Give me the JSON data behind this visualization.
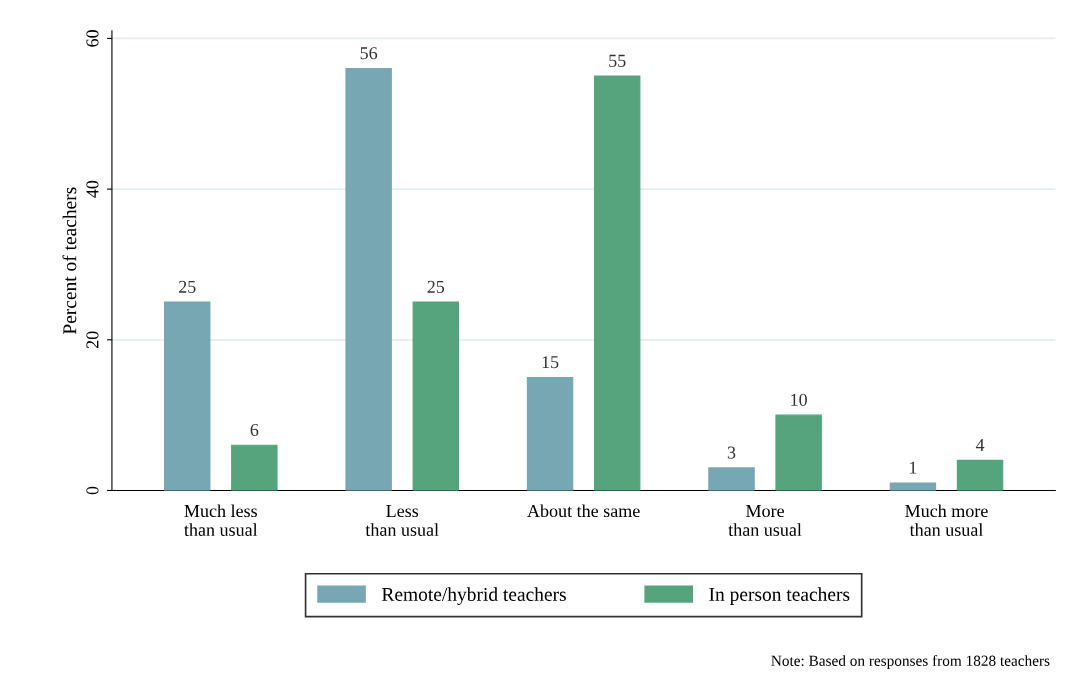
{
  "chart_data": {
    "type": "bar",
    "ylabel": "Percent of teachers",
    "categories": [
      "Much less\nthan usual",
      "Less\nthan usual",
      "About the same",
      "More\nthan usual",
      "Much more\nthan usual"
    ],
    "series": [
      {
        "name": "Remote/hybrid teachers",
        "color": "#76a7b2",
        "values": [
          25,
          56,
          15,
          3,
          1
        ]
      },
      {
        "name": "In person teachers",
        "color": "#55a47e",
        "values": [
          6,
          25,
          55,
          10,
          4
        ]
      }
    ],
    "ylim": [
      0,
      61
    ],
    "yticks": [
      0,
      20,
      40,
      60
    ],
    "grid": "y",
    "legend": "bottom",
    "data_labels": true,
    "annotations": [
      "Note: Based on responses from 1828 teachers"
    ]
  }
}
